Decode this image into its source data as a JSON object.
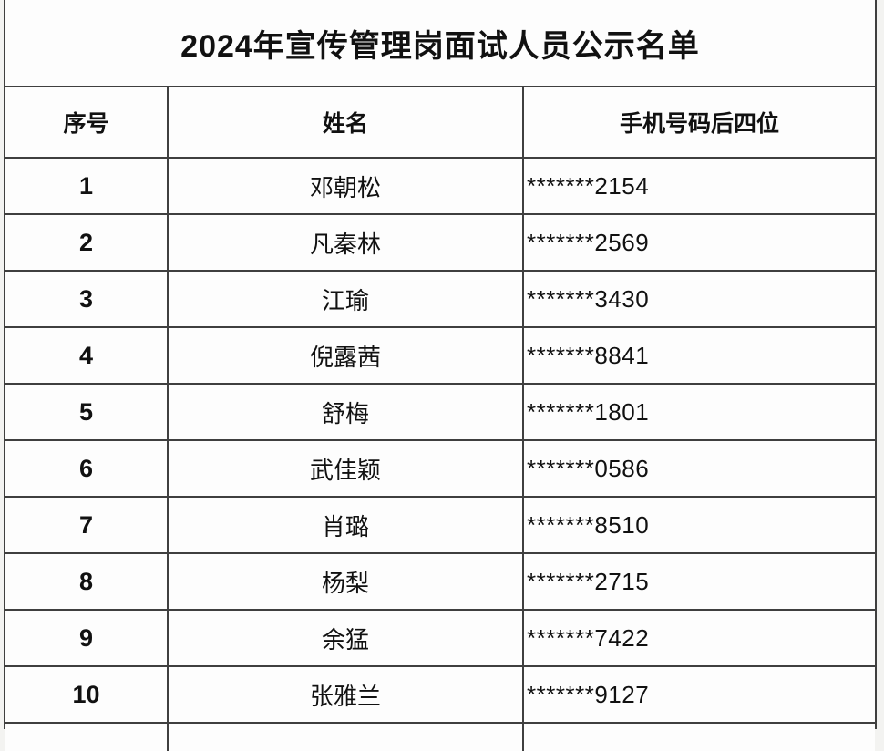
{
  "title": "2024年宣传管理岗面试人员公示名单",
  "table": {
    "columns": [
      "序号",
      "姓名",
      "手机号码后四位"
    ],
    "rows": [
      {
        "no": "1",
        "name": "邓朝松",
        "phone": "*******2154"
      },
      {
        "no": "2",
        "name": "凡秦林",
        "phone": "*******2569"
      },
      {
        "no": "3",
        "name": "江瑜",
        "phone": "*******3430"
      },
      {
        "no": "4",
        "name": "倪露茜",
        "phone": "*******8841"
      },
      {
        "no": "5",
        "name": "舒梅",
        "phone": "*******1801"
      },
      {
        "no": "6",
        "name": "武佳颖",
        "phone": "*******0586"
      },
      {
        "no": "7",
        "name": "肖璐",
        "phone": "*******8510"
      },
      {
        "no": "8",
        "name": "杨梨",
        "phone": "*******2715"
      },
      {
        "no": "9",
        "name": "余猛",
        "phone": "*******7422"
      },
      {
        "no": "10",
        "name": "张雅兰",
        "phone": "*******9127"
      }
    ]
  }
}
